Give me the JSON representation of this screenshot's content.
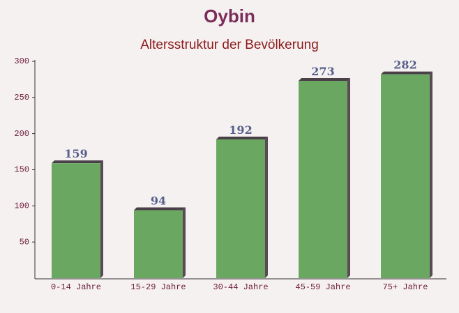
{
  "chart_data": {
    "type": "bar",
    "title": "Oybin",
    "subtitle": "Altersstruktur der Bevölkerung",
    "categories": [
      "0-14 Jahre",
      "15-29 Jahre",
      "30-44 Jahre",
      "45-59 Jahre",
      "75+ Jahre"
    ],
    "values": [
      159,
      94,
      192,
      273,
      282
    ],
    "color": "#6aa862",
    "ylim": [
      0,
      300
    ],
    "yticks": [
      50,
      100,
      150,
      200,
      250,
      300
    ]
  }
}
